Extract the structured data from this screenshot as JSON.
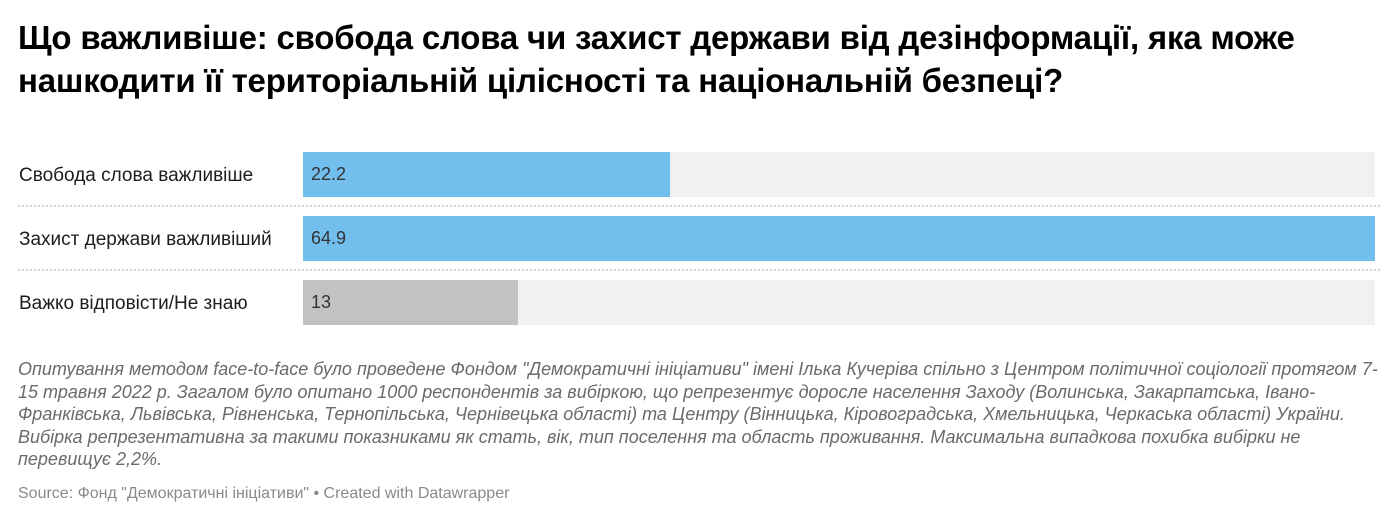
{
  "title": "Що важливіше: свобода слова чи захист держави від дезінформації, яка може нашкодити її територіальній цілісності та національній безпеці?",
  "colors": {
    "accent": "#72bfed",
    "neutral": "#c2c2c2",
    "track": "#f1f1f1"
  },
  "rows": [
    {
      "label": "Свобода слова важливіше",
      "value_label": "22.2",
      "value": 22.2,
      "color": "#72bfed"
    },
    {
      "label": "Захист держави важливіший",
      "value_label": "64.9",
      "value": 64.9,
      "color": "#72bfed"
    },
    {
      "label": "Важко відповісти/Не знаю",
      "value_label": "13",
      "value": 13,
      "color": "#c2c2c2"
    }
  ],
  "notes": "Опитування методом face-to-face було проведене Фондом \"Демократичні ініціативи\" імені Ілька Кучеріва спільно з Центром політичної соціології протягом 7-15 травня 2022 р. Загалом було опитано 1000 респондентів за вибіркою, що репрезентує доросле населення Заходу (Волинська, Закарпатська, Івано-Франківська, Львівська, Рівненська, Тернопільська, Чернівецька області) та Центру (Вінницька, Кіровоградська, Хмельницька, Черкаська області) України. Вибірка репрезентативна за такими показниками як стать, вік, тип поселення та область проживання. Максимальна випадкова похибка вибірки не перевищує 2,2%.",
  "source": "Source: Фонд \"Демократичні ініціативи\" • Created with Datawrapper",
  "chart_data": {
    "type": "bar",
    "orientation": "horizontal",
    "title": "Що важливіше: свобода слова чи захист держави від дезінформації, яка може нашкодити її територіальній цілісності та національній безпеці?",
    "categories": [
      "Свобода слова важливіше",
      "Захист держави важливіший",
      "Важко відповісти/Не знаю"
    ],
    "values": [
      22.2,
      64.9,
      13
    ],
    "colors": [
      "#72bfed",
      "#72bfed",
      "#c2c2c2"
    ],
    "xlabel": "",
    "ylabel": "",
    "xlim": [
      0,
      64.9
    ],
    "grid": false,
    "legend": "none",
    "data_labels": true
  }
}
